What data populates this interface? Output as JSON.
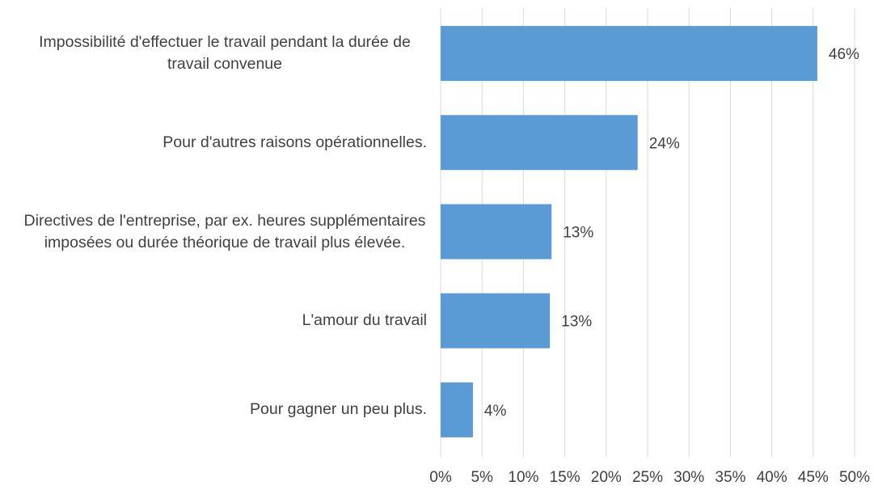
{
  "chart_data": {
    "type": "hbar",
    "categories": [
      "Impossibilité d'effectuer le travail pendant la durée de travail convenue",
      "Pour d'autres raisons opérationnelles.",
      "Directives de l'entreprise, par ex. heures supplémentaires imposées ou durée théorique de travail plus élevée.",
      "L'amour du travail",
      "Pour gagner un peu plus."
    ],
    "values": [
      45.5,
      23.8,
      13.4,
      13.2,
      3.9
    ],
    "value_labels": [
      "46%",
      "24%",
      "13%",
      "13%",
      "4%"
    ],
    "color": "#5b9bd5",
    "xlim": [
      0,
      50
    ],
    "xticks": [
      {
        "value": 0,
        "label": "0%"
      },
      {
        "value": 5,
        "label": "5%"
      },
      {
        "value": 10,
        "label": "10%"
      },
      {
        "value": 15,
        "label": "15%"
      },
      {
        "value": 20,
        "label": "20%"
      },
      {
        "value": 25,
        "label": "25%"
      },
      {
        "value": 30,
        "label": "30%"
      },
      {
        "value": 35,
        "label": "35%"
      },
      {
        "value": 40,
        "label": "40%"
      },
      {
        "value": 45,
        "label": "45%"
      },
      {
        "value": 50,
        "label": "50%"
      }
    ],
    "grid": true
  }
}
